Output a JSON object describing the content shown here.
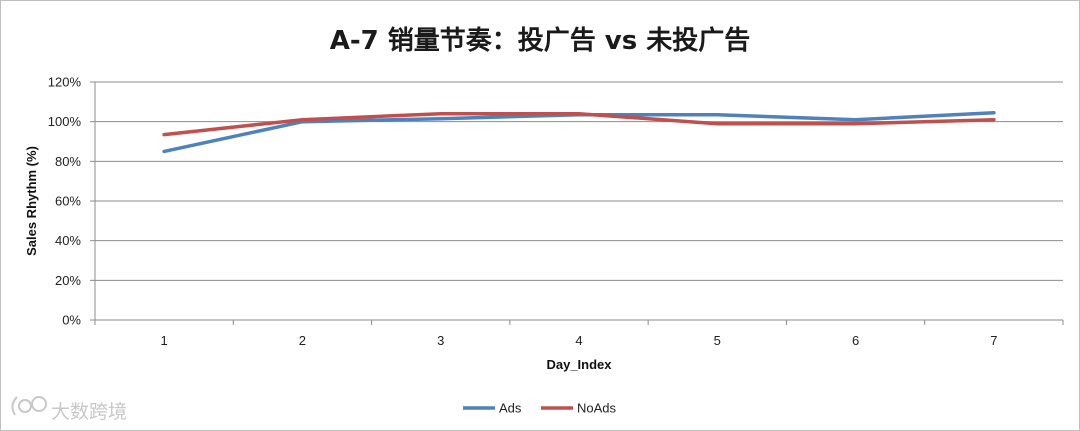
{
  "chart_data": {
    "type": "line",
    "title": "A-7 销量节奏：投广告 vs 未投广告",
    "xlabel": "Day_Index",
    "ylabel": "Sales Rhythm (%)",
    "categories": [
      "1",
      "2",
      "3",
      "4",
      "5",
      "6",
      "7"
    ],
    "y_ticks": [
      "0%",
      "20%",
      "40%",
      "60%",
      "80%",
      "100%",
      "120%"
    ],
    "ylim": [
      0,
      120
    ],
    "grid": true,
    "legend_position": "bottom",
    "series": [
      {
        "name": "Ads",
        "color": "#4F81BD",
        "values": [
          85,
          100,
          101.5,
          103.5,
          103.5,
          101,
          104.5
        ]
      },
      {
        "name": "NoAds",
        "color": "#C0504D",
        "values": [
          93.5,
          101,
          104,
          104,
          99,
          99,
          101
        ]
      }
    ]
  },
  "watermark": {
    "text": "大数跨境"
  }
}
